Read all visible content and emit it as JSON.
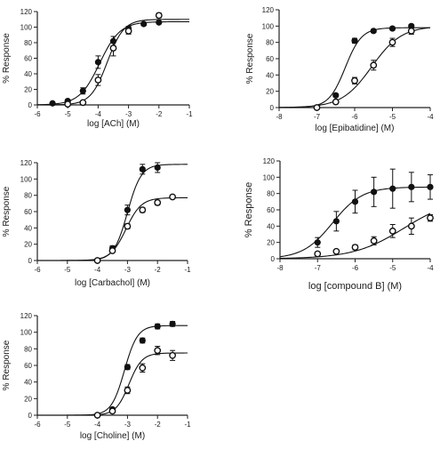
{
  "chart_data": [
    {
      "type": "scatter",
      "xlabel": "log [ACh] (M)",
      "ylabel": "% Response",
      "xlim": [
        -6,
        -1
      ],
      "ylim": [
        0,
        120
      ],
      "xticks": [
        -6,
        -5,
        -4,
        -3,
        -2,
        -1
      ],
      "yticks": [
        0,
        20,
        40,
        60,
        80,
        100,
        120
      ],
      "xtick_labels": [
        "-6",
        "-5",
        "-4",
        "-3",
        "-2",
        "-1"
      ],
      "ytick_labels": [
        "0",
        "20",
        "40",
        "60",
        "80",
        "100",
        "120"
      ],
      "series": [
        {
          "marker": "filled-circle",
          "x": [
            -5.5,
            -5,
            -4.5,
            -4,
            -3.5,
            -3,
            -2.5,
            -2
          ],
          "y": [
            2,
            5,
            18,
            55,
            82,
            98,
            104,
            106
          ],
          "err": [
            0,
            2,
            4,
            8,
            6,
            3,
            2,
            0
          ],
          "fit": {
            "bottom": 0,
            "top": 107,
            "logEC50": -3.95,
            "hill": 1.3
          }
        },
        {
          "marker": "open-circle",
          "x": [
            -5,
            -4.5,
            -4,
            -3.5,
            -3,
            -2
          ],
          "y": [
            1,
            3,
            32,
            73,
            95,
            115
          ],
          "err": [
            0,
            2,
            7,
            10,
            4,
            3
          ],
          "fit": {
            "bottom": 0,
            "top": 110,
            "logEC50": -3.7,
            "hill": 1.6
          }
        }
      ]
    },
    {
      "type": "scatter",
      "xlabel": "log [Epibatidine] (M)",
      "ylabel": "% Response",
      "xlim": [
        -8,
        -4
      ],
      "ylim": [
        0,
        120
      ],
      "xticks": [
        -8,
        -7,
        -6,
        -5,
        -4
      ],
      "yticks": [
        0,
        20,
        40,
        60,
        80,
        100,
        120
      ],
      "xtick_labels": [
        "-8",
        "-7",
        "-6",
        "-5",
        "-4"
      ],
      "ytick_labels": [
        "0",
        "20",
        "40",
        "60",
        "80",
        "100",
        "120"
      ],
      "series": [
        {
          "marker": "filled-circle",
          "x": [
            -7,
            -6.5,
            -6,
            -5.5,
            -5,
            -4.5
          ],
          "y": [
            0,
            15,
            82,
            94,
            97,
            100
          ],
          "err": [
            0,
            2,
            3,
            2,
            2,
            2
          ],
          "fit": {
            "bottom": 0,
            "top": 98,
            "logEC50": -6.25,
            "hill": 2.0
          }
        },
        {
          "marker": "open-circle",
          "x": [
            -7,
            -6.5,
            -6,
            -5.5,
            -5,
            -4.5
          ],
          "y": [
            0,
            7,
            33,
            52,
            80,
            94
          ],
          "err": [
            0,
            2,
            4,
            6,
            5,
            4
          ],
          "fit": {
            "bottom": 0,
            "top": 100,
            "logEC50": -5.55,
            "hill": 1.1
          }
        }
      ]
    },
    {
      "type": "scatter",
      "xlabel": "log [Carbachol] (M)",
      "ylabel": "% Response",
      "xlim": [
        -6,
        -1
      ],
      "ylim": [
        0,
        120
      ],
      "xticks": [
        -6,
        -5,
        -4,
        -3,
        -2,
        -1
      ],
      "yticks": [
        0,
        20,
        40,
        60,
        80,
        100,
        120
      ],
      "xtick_labels": [
        "-6",
        "-5",
        "-4",
        "-3",
        "-2",
        "-1"
      ],
      "ytick_labels": [
        "0",
        "20",
        "40",
        "60",
        "80",
        "100",
        "120"
      ],
      "series": [
        {
          "marker": "filled-circle",
          "x": [
            -4,
            -3.5,
            -3,
            -2.5,
            -2
          ],
          "y": [
            0,
            15,
            62,
            112,
            114
          ],
          "err": [
            0,
            3,
            6,
            6,
            6
          ],
          "fit": {
            "bottom": 0,
            "top": 118,
            "logEC50": -3.0,
            "hill": 1.9
          }
        },
        {
          "marker": "open-circle",
          "x": [
            -4,
            -3.5,
            -3,
            -2.5,
            -2,
            -1.5
          ],
          "y": [
            0,
            12,
            42,
            62,
            71,
            78
          ],
          "err": [
            0,
            2,
            3,
            3,
            3,
            2
          ],
          "fit": {
            "bottom": 0,
            "top": 77,
            "logEC50": -3.05,
            "hill": 1.7
          }
        }
      ]
    },
    {
      "type": "scatter",
      "xlabel": "log [compound B] (M)",
      "ylabel": "% Response",
      "xlim": [
        -8,
        -4
      ],
      "ylim": [
        0,
        120
      ],
      "xticks": [
        -8,
        -7,
        -6,
        -5,
        -4
      ],
      "yticks": [
        0,
        20,
        40,
        60,
        80,
        100,
        120
      ],
      "xtick_labels": [
        "-8",
        "-7",
        "-6",
        "-5",
        "-4"
      ],
      "ytick_labels": [
        "0",
        "20",
        "40",
        "60",
        "80",
        "100",
        "120"
      ],
      "series": [
        {
          "marker": "filled-circle",
          "x": [
            -7,
            -6.5,
            -6,
            -5.5,
            -5,
            -4.5,
            -4
          ],
          "y": [
            20,
            46,
            70,
            82,
            86,
            88,
            88
          ],
          "err": [
            6,
            12,
            14,
            18,
            24,
            18,
            15
          ],
          "fit": {
            "bottom": 0,
            "top": 88,
            "logEC50": -6.6,
            "hill": 1.1
          }
        },
        {
          "marker": "open-circle",
          "x": [
            -7,
            -6.5,
            -6,
            -5.5,
            -5,
            -4.5,
            -4
          ],
          "y": [
            6,
            9,
            14,
            22,
            34,
            40,
            50
          ],
          "err": [
            2,
            2,
            3,
            5,
            8,
            10,
            4
          ],
          "fit": {
            "bottom": 0,
            "top": 75,
            "logEC50": -4.7,
            "hill": 0.65
          }
        }
      ]
    },
    {
      "type": "scatter",
      "xlabel": "log [Choline] (M)",
      "ylabel": "% Response",
      "xlim": [
        -6,
        -1
      ],
      "ylim": [
        0,
        120
      ],
      "xticks": [
        -6,
        -5,
        -4,
        -3,
        -2,
        -1
      ],
      "yticks": [
        0,
        20,
        40,
        60,
        80,
        100,
        120
      ],
      "xtick_labels": [
        "-6",
        "-5",
        "-4",
        "-3",
        "-2",
        "-1"
      ],
      "ytick_labels": [
        "0",
        "20",
        "40",
        "60",
        "80",
        "100",
        "120"
      ],
      "series": [
        {
          "marker": "filled-circle",
          "x": [
            -4,
            -3.5,
            -3,
            -2.5,
            -2,
            -1.5
          ],
          "y": [
            0,
            7,
            58,
            90,
            107,
            110
          ],
          "err": [
            0,
            2,
            3,
            3,
            3,
            3
          ],
          "fit": {
            "bottom": 0,
            "top": 108,
            "logEC50": -3.1,
            "hill": 2.0
          }
        },
        {
          "marker": "open-circle",
          "x": [
            -4,
            -3.5,
            -3,
            -2.5,
            -2,
            -1.5
          ],
          "y": [
            0,
            5,
            30,
            57,
            78,
            72
          ],
          "err": [
            0,
            2,
            4,
            5,
            5,
            6
          ],
          "fit": {
            "bottom": 0,
            "top": 75,
            "logEC50": -2.95,
            "hill": 2.0
          }
        }
      ]
    }
  ]
}
